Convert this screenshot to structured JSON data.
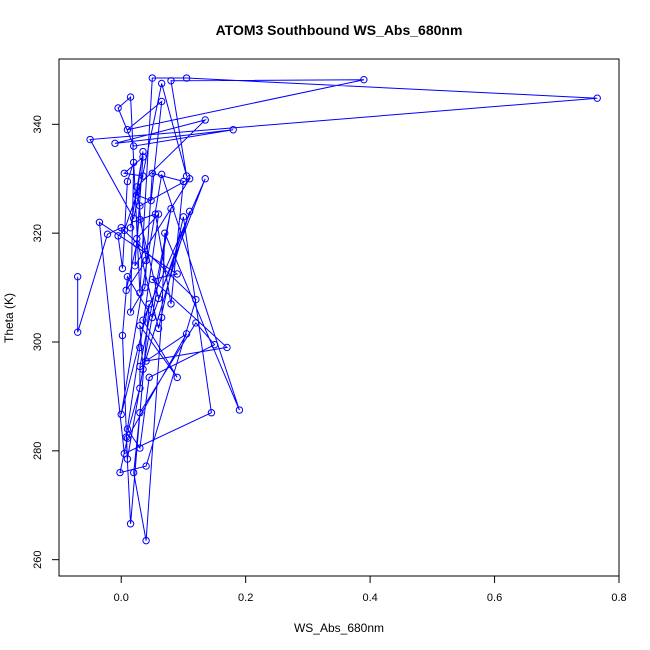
{
  "chart_data": {
    "type": "line",
    "title": "ATOM3 Southbound WS_Abs_680nm",
    "xlabel": "WS_Abs_680nm",
    "ylabel": "Theta (K)",
    "xlim": [
      -0.1,
      0.8
    ],
    "ylim": [
      257,
      352
    ],
    "x_ticks": [
      0.0,
      0.2,
      0.4,
      0.6,
      0.8
    ],
    "x_tick_labels": [
      "0.0",
      "0.2",
      "0.4",
      "0.6",
      "0.8"
    ],
    "y_ticks": [
      260,
      280,
      300,
      320,
      340
    ],
    "y_tick_labels": [
      "260",
      "280",
      "300",
      "320",
      "340"
    ],
    "grid": false,
    "series_color": "#0000ff",
    "marker": "open-circle",
    "series": [
      {
        "x": [
          -0.07,
          -0.07,
          -0.022,
          0.0,
          0.12,
          0.04,
          -0.002,
          0.01,
          0.105,
          0.04,
          0.17,
          0.05,
          0.09,
          -0.035,
          0.005,
          0.145,
          0.1,
          0.06,
          0.025,
          0.06,
          0.03,
          0.01,
          0.03,
          0.045,
          0.15,
          0.12,
          0.03,
          0.02,
          0.04,
          0.065,
          0.07,
          0.19,
          0.065,
          0.0,
          0.045,
          0.015,
          0.008,
          0.03,
          0.03,
          0.08,
          0.01,
          0.002,
          0.01,
          0.05,
          0.11,
          0.035,
          0.03,
          0.09,
          0.035,
          0.135,
          0.06,
          0.03,
          0.055,
          0.08,
          0.1,
          0.05,
          0.038,
          0.015,
          0.02,
          0.01,
          0.002,
          -0.005,
          0.005,
          0.035,
          0.005,
          0.035,
          0.022,
          0.11,
          0.03,
          0.025,
          0.008,
          0.04,
          0.025,
          0.135,
          -0.01,
          0.18,
          0.02,
          -0.005,
          0.015,
          0.03,
          0.05,
          0.105,
          0.765,
          -0.05,
          0.02,
          0.065,
          0.105,
          0.08,
          0.39,
          0.01,
          0.065,
          0.048,
          0.025,
          0.035,
          0.015
        ],
        "y": [
          312.0,
          301.8,
          319.8,
          321.0,
          307.8,
          277.2,
          276.0,
          282.3,
          301.5,
          296.5,
          299.0,
          311.5,
          312.5,
          322.0,
          279.5,
          287.0,
          323.0,
          302.5,
          319.0,
          323.5,
          299.0,
          284.0,
          280.5,
          293.5,
          299.5,
          303.5,
          287.0,
          276.0,
          263.5,
          304.5,
          320.0,
          287.5,
          330.8,
          286.7,
          307.0,
          266.6,
          282.5,
          291.5,
          295.5,
          324.5,
          278.5,
          301.2,
          312.0,
          304.5,
          324.0,
          295.0,
          303.0,
          293.5,
          304.0,
          330.0,
          308.0,
          322.5,
          323.5,
          307.0,
          329.5,
          331.0,
          310.0,
          305.5,
          333.0,
          329.5,
          313.5,
          319.5,
          320.5,
          330.5,
          331.0,
          334.0,
          314.0,
          330.0,
          325.0,
          318.0,
          309.5,
          315.0,
          328.5,
          340.8,
          336.5,
          339.0,
          336.0,
          343.0,
          345.0,
          309.0,
          348.5,
          348.5,
          344.8,
          337.2,
          322.7,
          347.5,
          330.5,
          348.0,
          348.2,
          339.0,
          344.2,
          326.0,
          327.0,
          335.0,
          321.0
        ]
      }
    ]
  }
}
